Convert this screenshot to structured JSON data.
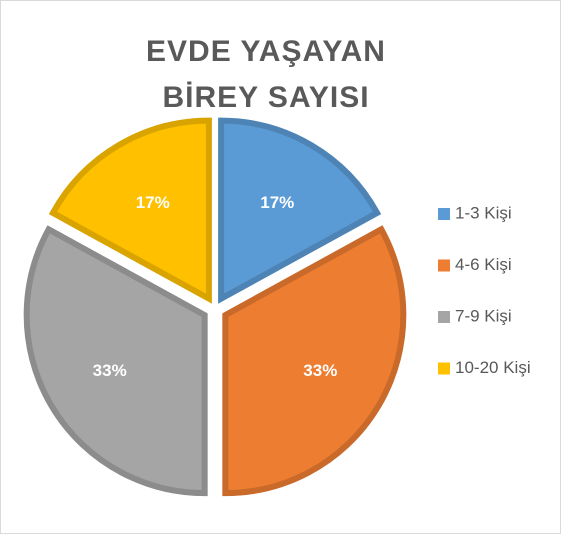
{
  "chart_data": {
    "type": "pie",
    "title": "EVDE YAŞAYAN BİREY SAYISI",
    "categories": [
      "1-3 Kişi",
      "4-6 Kişi",
      "7-9 Kişi",
      "10-20 Kişi"
    ],
    "values": [
      17,
      33,
      33,
      17
    ],
    "value_labels": [
      "17%",
      "33%",
      "33%",
      "17%"
    ],
    "colors": [
      "#5b9bd5",
      "#ed7d31",
      "#a5a5a5",
      "#ffc000"
    ],
    "legend": "right"
  }
}
